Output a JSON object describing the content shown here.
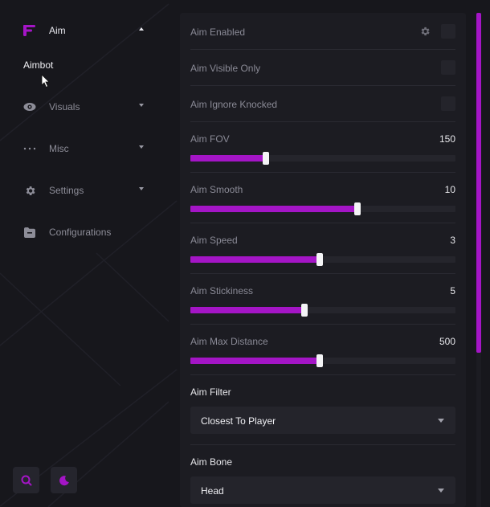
{
  "sidebar": {
    "items": [
      {
        "label": "Aim",
        "icon": "aim-logo-icon",
        "expanded": true
      },
      {
        "label": "Visuals",
        "icon": "eye-icon",
        "expanded": false
      },
      {
        "label": "Misc",
        "icon": "dots-icon",
        "expanded": false
      },
      {
        "label": "Settings",
        "icon": "gear-icon",
        "expanded": false
      },
      {
        "label": "Configurations",
        "icon": "folder-icon"
      }
    ],
    "subitem": "Aimbot",
    "bottom_buttons": [
      "search-icon",
      "moon-icon"
    ]
  },
  "accent_color": "#a415c6",
  "settings": {
    "aim_enabled": {
      "label": "Aim Enabled",
      "checked": false
    },
    "aim_visible_only": {
      "label": "Aim Visible Only",
      "checked": false
    },
    "aim_ignore_knocked": {
      "label": "Aim Ignore Knocked",
      "checked": false
    },
    "sliders": [
      {
        "label": "Aim FOV",
        "value": "150",
        "fraction": 0.285
      },
      {
        "label": "Aim Smooth",
        "value": "10",
        "fraction": 0.63
      },
      {
        "label": "Aim Speed",
        "value": "3",
        "fraction": 0.487
      },
      {
        "label": "Aim Stickiness",
        "value": "5",
        "fraction": 0.43
      },
      {
        "label": "Aim Max Distance",
        "value": "500",
        "fraction": 0.487
      }
    ],
    "aim_filter": {
      "label": "Aim Filter",
      "selected": "Closest To Player"
    },
    "aim_bone": {
      "label": "Aim Bone",
      "selected": "Head"
    }
  }
}
